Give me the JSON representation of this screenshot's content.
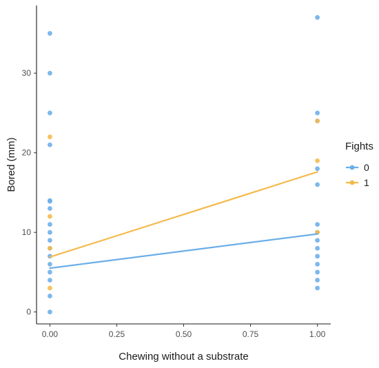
{
  "chart_data": {
    "type": "scatter",
    "xlabel": "Chewing without a substrate",
    "ylabel": "Bored (mm)",
    "xlim": [
      -0.05,
      1.05
    ],
    "ylim": [
      -1.5,
      38.5
    ],
    "x_ticks": [
      0,
      0.25,
      0.5,
      0.75,
      1
    ],
    "x_tick_labels": [
      "0.00",
      "0.25",
      "0.50",
      "0.75",
      "1.00"
    ],
    "y_ticks": [
      0,
      10,
      20,
      30
    ],
    "y_tick_labels": [
      "0",
      "10",
      "20",
      "30"
    ],
    "grid": false,
    "legend": {
      "title": "Fights",
      "position": "right"
    },
    "series": [
      {
        "name": "0",
        "color": "#6aaee8",
        "points": [
          [
            0,
            35
          ],
          [
            0,
            30
          ],
          [
            0,
            25
          ],
          [
            0,
            21
          ],
          [
            0,
            14
          ],
          [
            0,
            13.9
          ],
          [
            0,
            13
          ],
          [
            0,
            11
          ],
          [
            0,
            10
          ],
          [
            0,
            9
          ],
          [
            0,
            8
          ],
          [
            0,
            7
          ],
          [
            0,
            6
          ],
          [
            0,
            5
          ],
          [
            0,
            4
          ],
          [
            0,
            2
          ],
          [
            0,
            0
          ],
          [
            1,
            37
          ],
          [
            1,
            25
          ],
          [
            1,
            24
          ],
          [
            1,
            18
          ],
          [
            1,
            16
          ],
          [
            1,
            11
          ],
          [
            1,
            10
          ],
          [
            1,
            9
          ],
          [
            1,
            8
          ],
          [
            1,
            7
          ],
          [
            1,
            6
          ],
          [
            1,
            5
          ],
          [
            1,
            4
          ],
          [
            1,
            3
          ]
        ],
        "fit": [
          [
            0,
            5.5
          ],
          [
            1,
            9.8
          ]
        ]
      },
      {
        "name": "1",
        "color": "#f5b94a",
        "points": [
          [
            0,
            22
          ],
          [
            0,
            12
          ],
          [
            0,
            8
          ],
          [
            0,
            3
          ],
          [
            1,
            24
          ],
          [
            1,
            19
          ],
          [
            1,
            10
          ]
        ],
        "fit": [
          [
            0,
            6.9
          ],
          [
            1,
            17.6
          ]
        ]
      }
    ]
  }
}
